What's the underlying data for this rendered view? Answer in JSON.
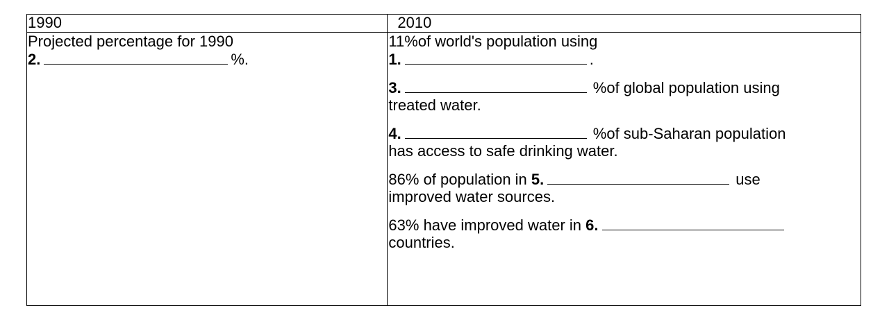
{
  "table": {
    "headers": [
      "1990",
      "2010"
    ],
    "left": {
      "line1": "Projected percentage for 1990",
      "item2_num": "2.",
      "item2_suffix": "%."
    },
    "right": {
      "p1_line1": "11%of world's population using",
      "p1_num": "1.",
      "p1_suffix": ".",
      "p3_num": "3.",
      "p3_after": "%of global population using",
      "p3_line2": "treated water.",
      "p4_num": "4.",
      "p4_after": "%of sub-Saharan population",
      "p4_line2": "has access to safe drinking water.",
      "p5_before": "86% of population in",
      "p5_num": "5.",
      "p5_after": "use",
      "p5_line2": "improved water sources.",
      "p6_before": "63% have improved water in",
      "p6_num": "6.",
      "p6_line2": "countries."
    }
  }
}
